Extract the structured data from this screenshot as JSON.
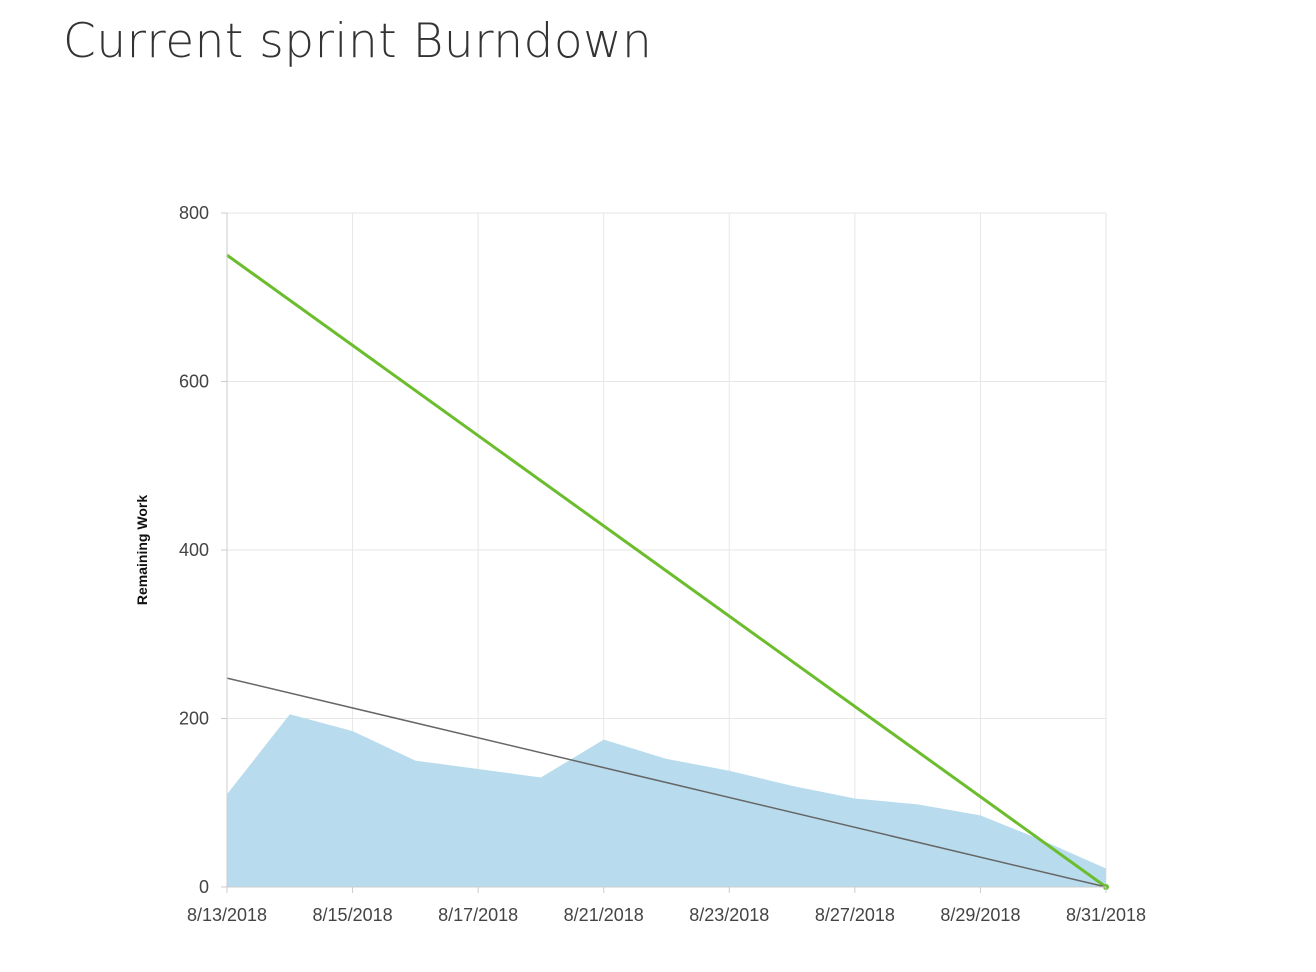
{
  "page": {
    "title": "Current sprint Burndown"
  },
  "colors": {
    "remaining_fill": "#b8dcee",
    "ideal_trend": "#6cbd2e",
    "average_burndown": "#666666",
    "grid": "#e6e6e6",
    "axis": "#cccccc"
  },
  "chart_data": {
    "type": "area",
    "title": "Current sprint Burndown",
    "xlabel": "",
    "ylabel": "Remaining Work",
    "ylim": [
      0,
      800
    ],
    "y_ticks": [
      0,
      200,
      400,
      600,
      800
    ],
    "x_tick_labels": [
      "8/13/2018",
      "8/15/2018",
      "8/17/2018",
      "8/21/2018",
      "8/23/2018",
      "8/27/2018",
      "8/29/2018",
      "8/31/2018"
    ],
    "grid": true,
    "legend": "none",
    "series": [
      {
        "type": "area",
        "x": [
          "8/13/2018",
          "8/14/2018",
          "8/15/2018",
          "8/16/2018",
          "8/17/2018",
          "8/20/2018",
          "8/21/2018",
          "8/22/2018",
          "8/23/2018",
          "8/24/2018",
          "8/27/2018",
          "8/28/2018",
          "8/29/2018",
          "8/30/2018",
          "8/31/2018"
        ],
        "values": [
          110,
          205,
          185,
          150,
          140,
          130,
          175,
          152,
          138,
          120,
          105,
          98,
          85,
          55,
          22
        ]
      },
      {
        "type": "line",
        "x": [
          "8/13/2018",
          "8/31/2018"
        ],
        "values": [
          750,
          0
        ]
      },
      {
        "type": "line",
        "x": [
          "8/13/2018",
          "8/31/2018"
        ],
        "values": [
          248,
          0
        ]
      }
    ]
  }
}
